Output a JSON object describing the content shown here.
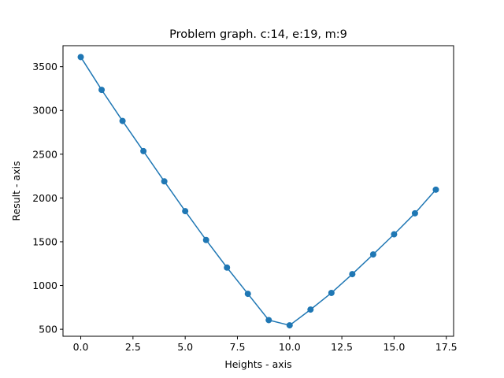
{
  "chart_data": {
    "type": "line",
    "title": "Problem graph. c:14, e:19, m:9",
    "xlabel": "Heights - axis",
    "ylabel": "Result - axis",
    "xlim": [
      -0.85,
      17.85
    ],
    "ylim": [
      420,
      3740
    ],
    "xticks": [
      0.0,
      2.5,
      5.0,
      7.5,
      10.0,
      12.5,
      15.0,
      17.5
    ],
    "xtick_labels": [
      "0.0",
      "2.5",
      "5.0",
      "7.5",
      "10.0",
      "12.5",
      "15.0",
      "17.5"
    ],
    "yticks": [
      500,
      1000,
      1500,
      2000,
      2500,
      3000,
      3500
    ],
    "ytick_labels": [
      "500",
      "1000",
      "1500",
      "2000",
      "2500",
      "3000",
      "3500"
    ],
    "grid": false,
    "series": [
      {
        "color": "#1f77b4",
        "marker": "circle",
        "x": [
          0,
          1,
          2,
          3,
          4,
          5,
          6,
          7,
          8,
          9,
          10,
          11,
          12,
          13,
          14,
          15,
          16,
          17
        ],
        "values": [
          3610,
          3235,
          2880,
          2535,
          2190,
          1850,
          1520,
          1205,
          905,
          605,
          545,
          725,
          915,
          1130,
          1355,
          1585,
          1825,
          2095
        ]
      }
    ]
  }
}
